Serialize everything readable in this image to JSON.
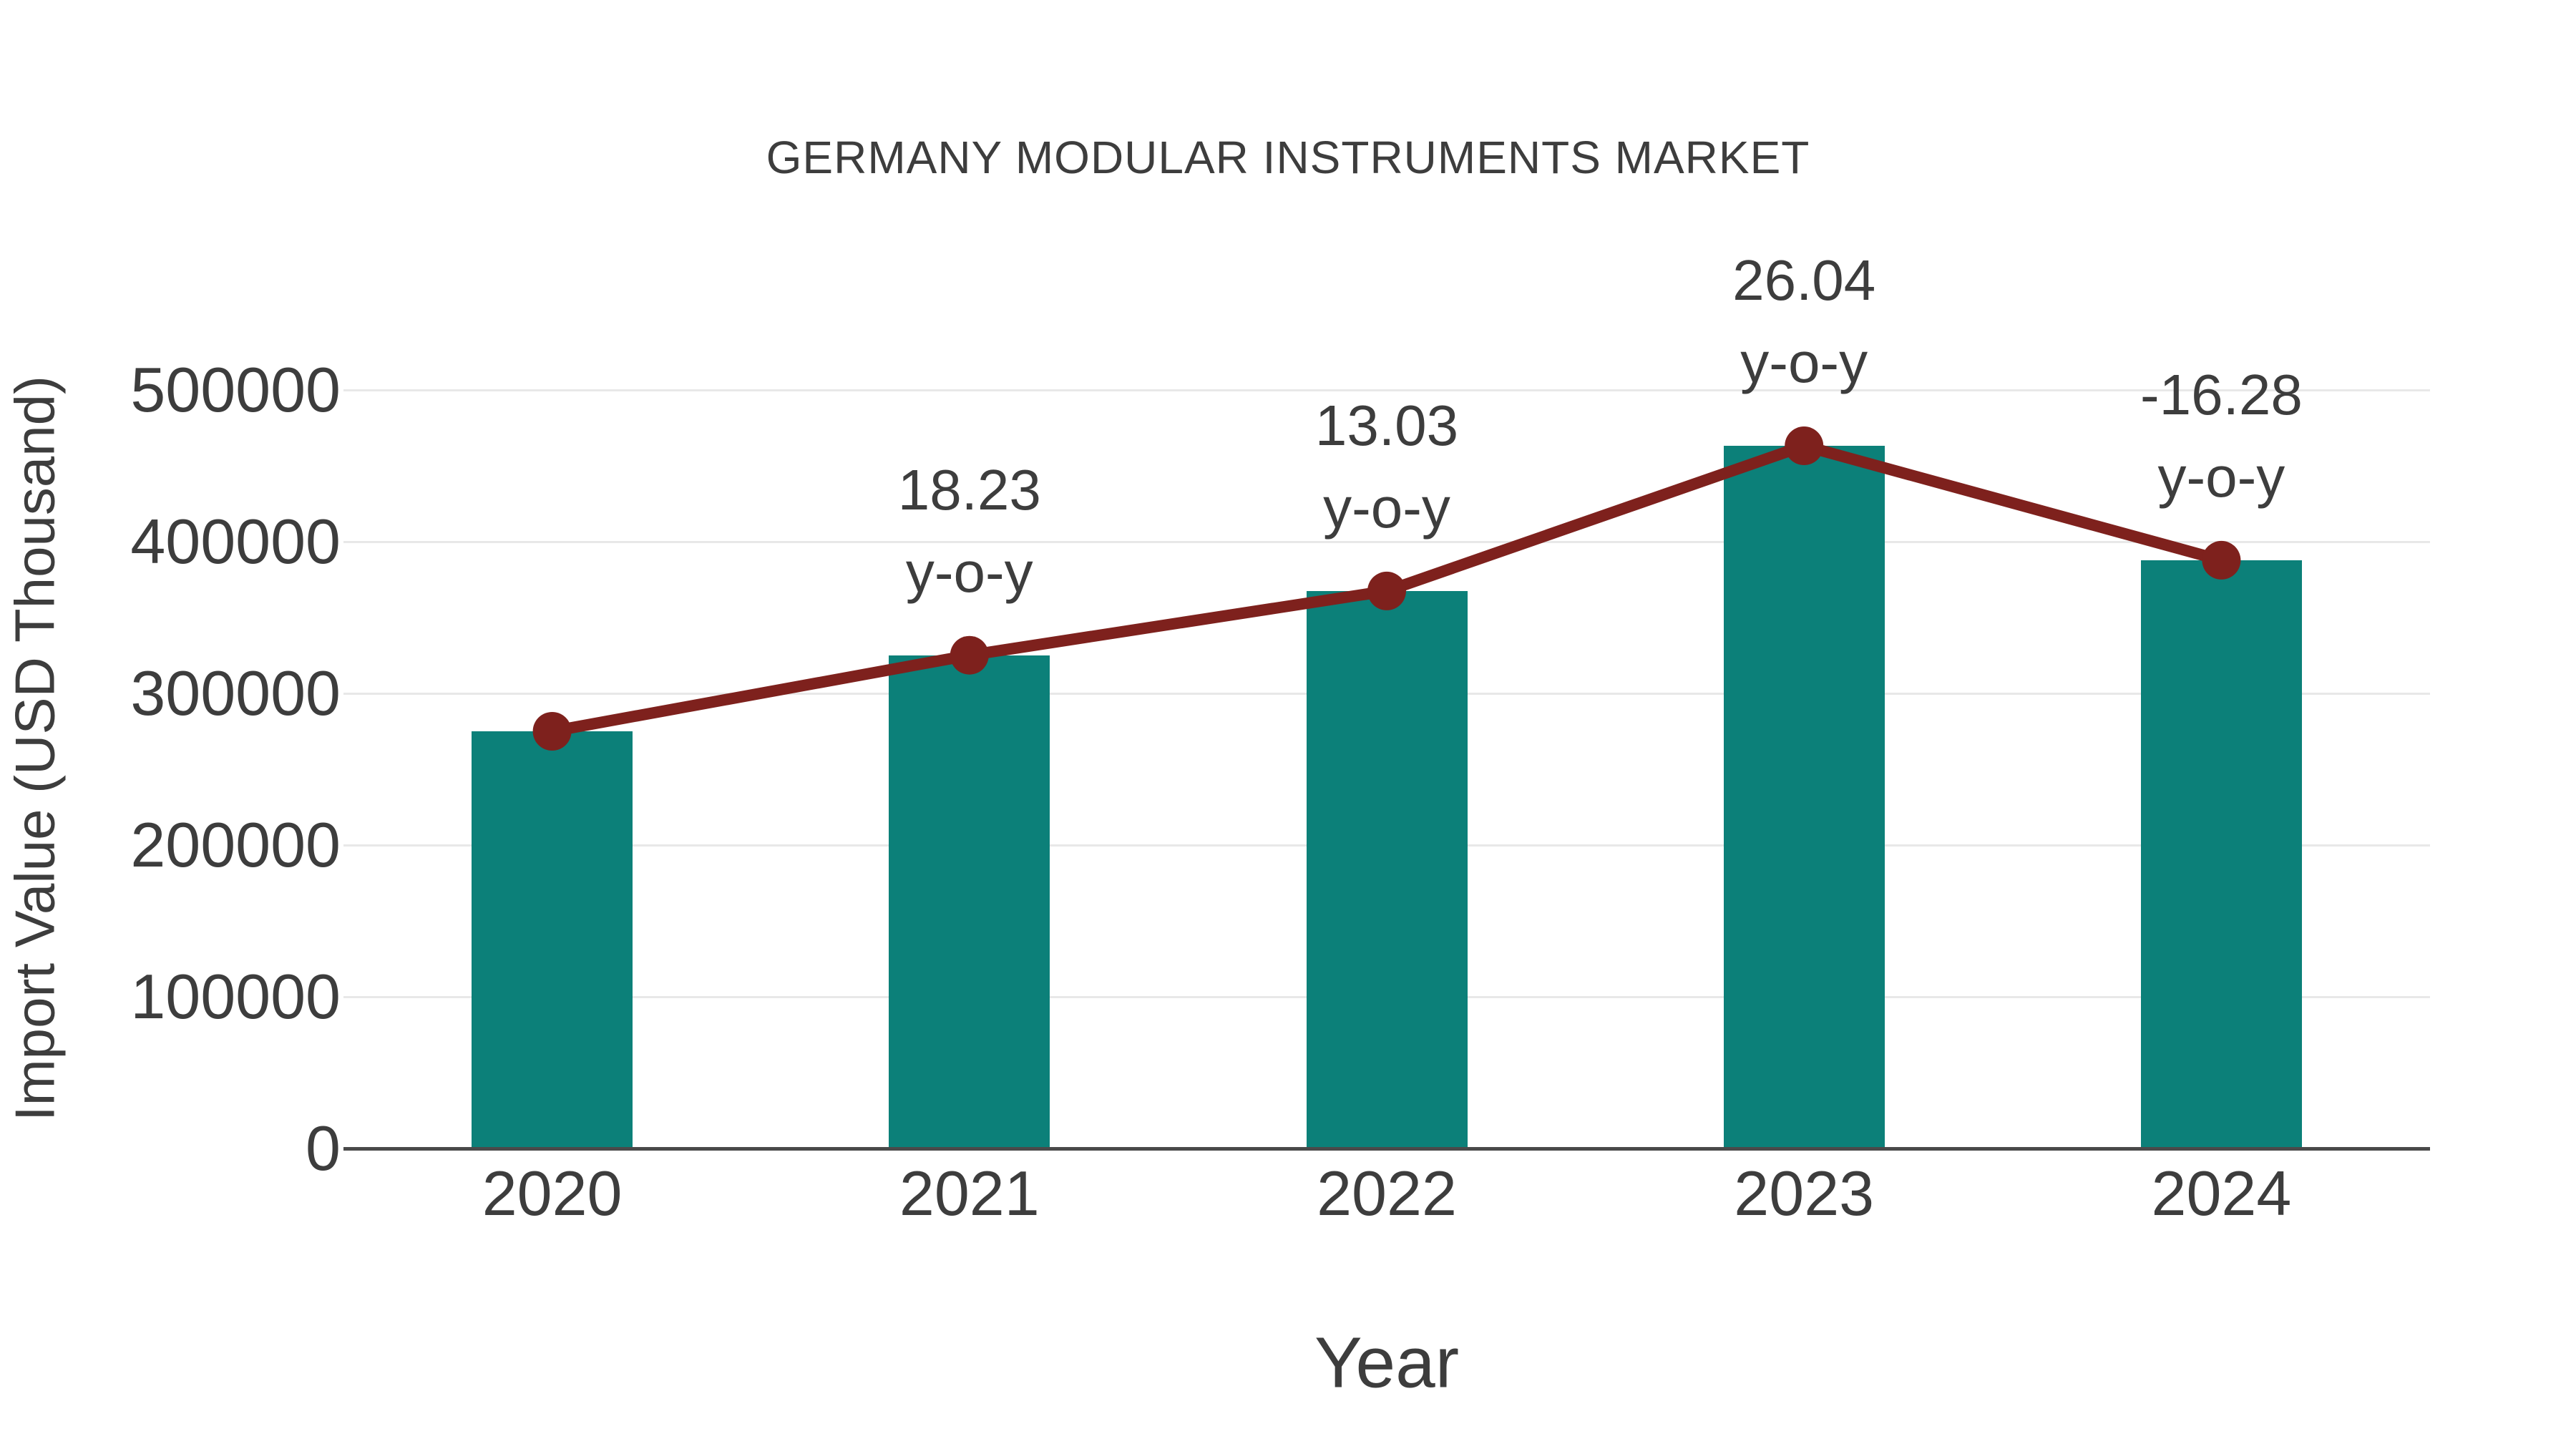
{
  "title": {
    "text": "GERMANY MODULAR INSTRUMENTS MARKET"
  },
  "x_axis": {
    "label": "Year"
  },
  "y_axis": {
    "label": "Import Value (USD Thousand)"
  },
  "chart_data": {
    "type": "combo-bar-line",
    "categories": [
      "2020",
      "2021",
      "2022",
      "2023",
      "2024"
    ],
    "series": [
      {
        "name": "Import Value (USD Thousand)",
        "type": "bar",
        "color": "#0c8079",
        "values": [
          275000,
          325130,
          367500,
          463190,
          387780
        ]
      },
      {
        "name": "y-o-y growth (%)",
        "type": "line",
        "color": "#7e211d",
        "values": [
          null,
          18.23,
          13.03,
          26.04,
          -16.28
        ]
      }
    ],
    "annotations": [
      {
        "category": "2021",
        "value": "18.23",
        "suffix": "y-o-y"
      },
      {
        "category": "2022",
        "value": "13.03",
        "suffix": "y-o-y"
      },
      {
        "category": "2023",
        "value": "26.04",
        "suffix": "y-o-y"
      },
      {
        "category": "2024",
        "value": "-16.28",
        "suffix": "y-o-y"
      }
    ],
    "ylim": [
      0,
      500000
    ],
    "y_ticks": [
      0,
      100000,
      200000,
      300000,
      400000,
      500000
    ],
    "grid": true,
    "legend": "none",
    "title": "GERMANY MODULAR INSTRUMENTS MARKET",
    "xlabel": "Year",
    "ylabel": "Import Value (USD Thousand)"
  },
  "colors": {
    "bar": "#0c8079",
    "line": "#7e211d",
    "marker": "#7e211d",
    "text": "#3d3d3d",
    "grid": "#e8e8e8",
    "axis": "#4a4a4a",
    "background": "#ffffff"
  }
}
